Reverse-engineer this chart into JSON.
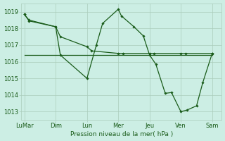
{
  "title": "Pression niveau de la mer( hPa )",
  "bg_color": "#cceee4",
  "grid_color": "#aaccbb",
  "line_color": "#1a5c1a",
  "x_tick_labels": [
    "LuMar",
    "Dim",
    "Lun",
    "Mer",
    "Jeu",
    "Ven",
    "Sam"
  ],
  "x_tick_positions": [
    0,
    1,
    2,
    3,
    4,
    5,
    6
  ],
  "ylim": [
    1012.5,
    1019.5
  ],
  "yticks": [
    1013,
    1014,
    1015,
    1016,
    1017,
    1018,
    1019
  ],
  "line_zigzag_x": [
    0.0,
    0.15,
    1.0,
    1.15,
    2.0,
    2.3,
    2.5,
    3.0,
    3.1,
    3.5,
    3.8,
    4.0,
    4.2,
    4.5,
    4.7,
    5.0,
    5.2,
    5.5,
    5.7,
    6.0
  ],
  "line_zigzag_y": [
    1018.85,
    1018.5,
    1018.1,
    1016.4,
    1015.0,
    1017.0,
    1018.3,
    1019.15,
    1018.75,
    1018.1,
    1017.55,
    1016.4,
    1015.85,
    1014.1,
    1014.15,
    1013.0,
    1013.1,
    1013.35,
    1014.75,
    1016.5
  ],
  "line_diagonal_x": [
    0.0,
    0.15,
    1.0,
    1.15,
    2.0,
    2.15,
    3.0,
    3.15,
    4.0,
    4.15,
    5.0,
    5.15,
    6.0
  ],
  "line_diagonal_y": [
    1018.85,
    1018.45,
    1018.1,
    1017.5,
    1016.9,
    1016.65,
    1016.5,
    1016.5,
    1016.5,
    1016.5,
    1016.5,
    1016.5,
    1016.5
  ],
  "line_flat_x": [
    0.0,
    1.0,
    1.15,
    2.0,
    3.0,
    4.0,
    5.0,
    5.5,
    6.0
  ],
  "line_flat_y": [
    1016.4,
    1016.4,
    1016.4,
    1016.4,
    1016.4,
    1016.4,
    1016.4,
    1016.4,
    1016.4
  ]
}
